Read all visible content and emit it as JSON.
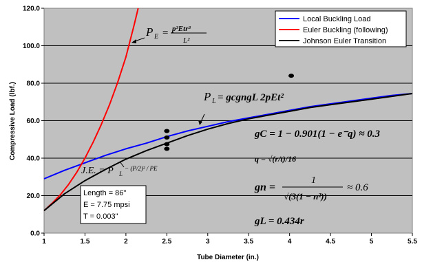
{
  "chart_data": {
    "type": "line",
    "xlabel": "Tube Diameter (in.)",
    "ylabel": "Compressive Load (lbf.)",
    "xlim": [
      1,
      5.5
    ],
    "ylim": [
      0,
      120
    ],
    "x_ticks": [
      "1",
      "1.5",
      "2",
      "2.5",
      "3",
      "3.5",
      "4",
      "4.5",
      "5",
      "5.5"
    ],
    "y_ticks": [
      "0.0",
      "20.0",
      "40.0",
      "60.0",
      "80.0",
      "100.0",
      "120.0"
    ],
    "grid": "horizontal",
    "legend_position": "top-right",
    "series": [
      {
        "name": "Local Buckling Load",
        "color": "#0000ff",
        "x": [
          1,
          1.25,
          1.5,
          1.75,
          2,
          2.25,
          2.5,
          2.75,
          3,
          3.25,
          3.5,
          3.75,
          4,
          4.25,
          4.5,
          4.75,
          5,
          5.25,
          5.5
        ],
        "y": [
          29,
          33.5,
          37.5,
          41.5,
          45,
          48,
          51.5,
          54.5,
          57,
          59.5,
          61.5,
          63.5,
          65.5,
          67.5,
          69,
          70.5,
          72,
          73.5,
          74.5
        ]
      },
      {
        "name": "Euler Buckling (following)",
        "color": "#ff0000",
        "x": [
          1,
          1.1,
          1.2,
          1.3,
          1.4,
          1.5,
          1.6,
          1.7,
          1.8,
          1.9,
          2,
          2.1,
          2.15
        ],
        "y": [
          12,
          16,
          20.5,
          26,
          32.5,
          40,
          48.5,
          58,
          68.5,
          80.5,
          94,
          111,
          120
        ]
      },
      {
        "name": "Johnson Euler Transition",
        "color": "#000000",
        "x": [
          1,
          1.25,
          1.5,
          1.75,
          2,
          2.25,
          2.5,
          2.75,
          3,
          3.25,
          3.5,
          3.75,
          4,
          4.25,
          4.5,
          4.75,
          5,
          5.25,
          5.5
        ],
        "y": [
          12,
          21,
          28,
          34,
          39.5,
          44,
          48,
          52,
          55.5,
          58.5,
          61,
          63,
          65,
          67,
          68.5,
          70,
          71.5,
          73,
          74.5
        ]
      }
    ],
    "points": [
      {
        "x": 2.5,
        "y": 54.5
      },
      {
        "x": 2.5,
        "y": 51
      },
      {
        "x": 2.5,
        "y": 47.5
      },
      {
        "x": 2.5,
        "y": 45
      },
      {
        "x": 4.02,
        "y": 84
      }
    ]
  },
  "info_box": {
    "line1": "Length = 86\"",
    "line2": "E = 7.75 mpsi",
    "line3": "T = 0.003\""
  },
  "equations": {
    "pe_lhs": "P",
    "pe_sub": "E",
    "pe_eq": "=",
    "pe_num": "p³Etr³",
    "pe_den": "L²",
    "pl_lhs": "P",
    "pl_sub": "L",
    "pl_rhs": "= gcgngL 2pEt²",
    "je": "J.E. = P",
    "je_sub": "L",
    "je_tail": "− (P/2)² / PE",
    "gc": "gC = 1 − 0.901(1 − e⁻q) ≈ 0.3",
    "q": "q = √(r/t)/16",
    "gn_lhs": "gn =",
    "gn_num": "1",
    "gn_den": "√(3(1 − n²))",
    "gn_tail": "≈ 0.6",
    "gl": "gL = 0.434r"
  }
}
